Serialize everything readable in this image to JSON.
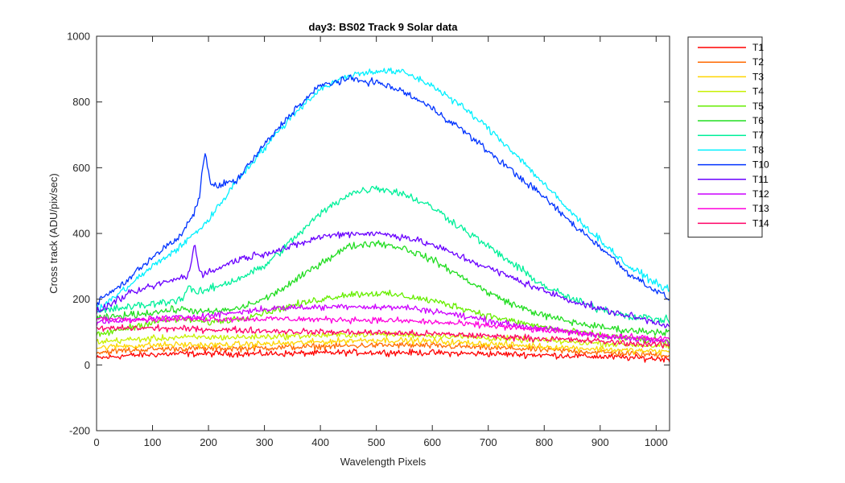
{
  "chart_data": {
    "type": "line",
    "title": "day3: BS02  Track 9 Solar data",
    "xlabel": "Wavelength Pixels",
    "ylabel": "Cross track (ADU/pix/sec)",
    "xlim": [
      0,
      1024
    ],
    "ylim": [
      -200,
      1000
    ],
    "xticks": [
      0,
      100,
      200,
      300,
      400,
      500,
      600,
      700,
      800,
      900,
      1000
    ],
    "yticks": [
      -200,
      0,
      200,
      400,
      600,
      800,
      1000
    ],
    "grid": false,
    "legend_position": "outside-right-top",
    "noise_note": "series are noisy; values are smoothed estimates of the underlying curve",
    "x": [
      0,
      50,
      100,
      150,
      200,
      250,
      300,
      350,
      400,
      450,
      500,
      550,
      600,
      650,
      700,
      750,
      800,
      850,
      900,
      950,
      1024
    ],
    "series": [
      {
        "name": "T1",
        "color": "#ff0000",
        "noise": 14,
        "values": [
          20,
          28,
          32,
          34,
          34,
          34,
          34,
          35,
          36,
          38,
          38,
          38,
          37,
          35,
          34,
          32,
          30,
          28,
          25,
          22,
          18
        ]
      },
      {
        "name": "T2",
        "color": "#ff6a00",
        "noise": 14,
        "values": [
          38,
          44,
          48,
          50,
          50,
          50,
          52,
          54,
          56,
          58,
          60,
          60,
          58,
          56,
          52,
          50,
          46,
          42,
          38,
          34,
          30
        ]
      },
      {
        "name": "T3",
        "color": "#ffd400",
        "noise": 14,
        "values": [
          52,
          58,
          60,
          62,
          60,
          62,
          64,
          66,
          70,
          74,
          76,
          74,
          72,
          68,
          64,
          60,
          56,
          52,
          48,
          44,
          40
        ]
      },
      {
        "name": "T4",
        "color": "#c8f000",
        "noise": 14,
        "values": [
          70,
          76,
          80,
          84,
          84,
          84,
          86,
          88,
          90,
          92,
          94,
          92,
          90,
          86,
          82,
          78,
          74,
          70,
          66,
          62,
          56
        ]
      },
      {
        "name": "T5",
        "color": "#66ee00",
        "noise": 16,
        "values": [
          90,
          110,
          130,
          140,
          130,
          140,
          160,
          180,
          200,
          215,
          218,
          210,
          195,
          175,
          150,
          130,
          115,
          100,
          90,
          80,
          70
        ]
      },
      {
        "name": "T6",
        "color": "#22dd22",
        "noise": 16,
        "values": [
          140,
          150,
          160,
          170,
          160,
          170,
          200,
          250,
          310,
          360,
          372,
          355,
          320,
          270,
          220,
          180,
          150,
          130,
          115,
          105,
          100
        ]
      },
      {
        "name": "T7",
        "color": "#00f09a",
        "noise": 18,
        "values": [
          160,
          175,
          185,
          200,
          230,
          260,
          300,
          380,
          460,
          520,
          540,
          520,
          480,
          420,
          360,
          300,
          240,
          200,
          170,
          150,
          135
        ]
      },
      {
        "name": "T8",
        "color": "#00f0ff",
        "noise": 16,
        "values": [
          165,
          230,
          300,
          360,
          440,
          560,
          660,
          760,
          840,
          880,
          895,
          890,
          850,
          790,
          720,
          640,
          550,
          460,
          380,
          300,
          225
        ]
      },
      {
        "name": "T10",
        "color": "#0033ff",
        "noise": 16,
        "values": [
          190,
          250,
          330,
          390,
          540,
          560,
          670,
          770,
          850,
          870,
          860,
          830,
          780,
          720,
          650,
          580,
          510,
          430,
          360,
          280,
          200
        ]
      },
      {
        "name": "T11",
        "color": "#6a00ff",
        "noise": 16,
        "values": [
          160,
          210,
          240,
          265,
          280,
          320,
          340,
          360,
          390,
          400,
          400,
          390,
          365,
          330,
          295,
          260,
          225,
          195,
          170,
          150,
          120
        ]
      },
      {
        "name": "T12",
        "color": "#cc00ff",
        "noise": 14,
        "values": [
          130,
          135,
          140,
          145,
          150,
          160,
          170,
          175,
          175,
          180,
          175,
          175,
          165,
          150,
          135,
          120,
          110,
          100,
          90,
          80,
          70
        ]
      },
      {
        "name": "T13",
        "color": "#ff00dd",
        "noise": 14,
        "values": [
          140,
          140,
          140,
          140,
          140,
          140,
          140,
          140,
          138,
          138,
          136,
          134,
          130,
          125,
          120,
          112,
          105,
          98,
          92,
          85,
          78
        ]
      },
      {
        "name": "T14",
        "color": "#ff0066",
        "noise": 14,
        "values": [
          110,
          112,
          112,
          110,
          108,
          106,
          104,
          102,
          100,
          100,
          98,
          96,
          94,
          92,
          88,
          84,
          80,
          76,
          72,
          66,
          60
        ]
      }
    ],
    "features": [
      {
        "series": "T10",
        "x": 193,
        "value": 640
      },
      {
        "series": "T11",
        "x": 175,
        "value": 360
      },
      {
        "series": "T7",
        "x": 165,
        "value": 240
      }
    ]
  }
}
